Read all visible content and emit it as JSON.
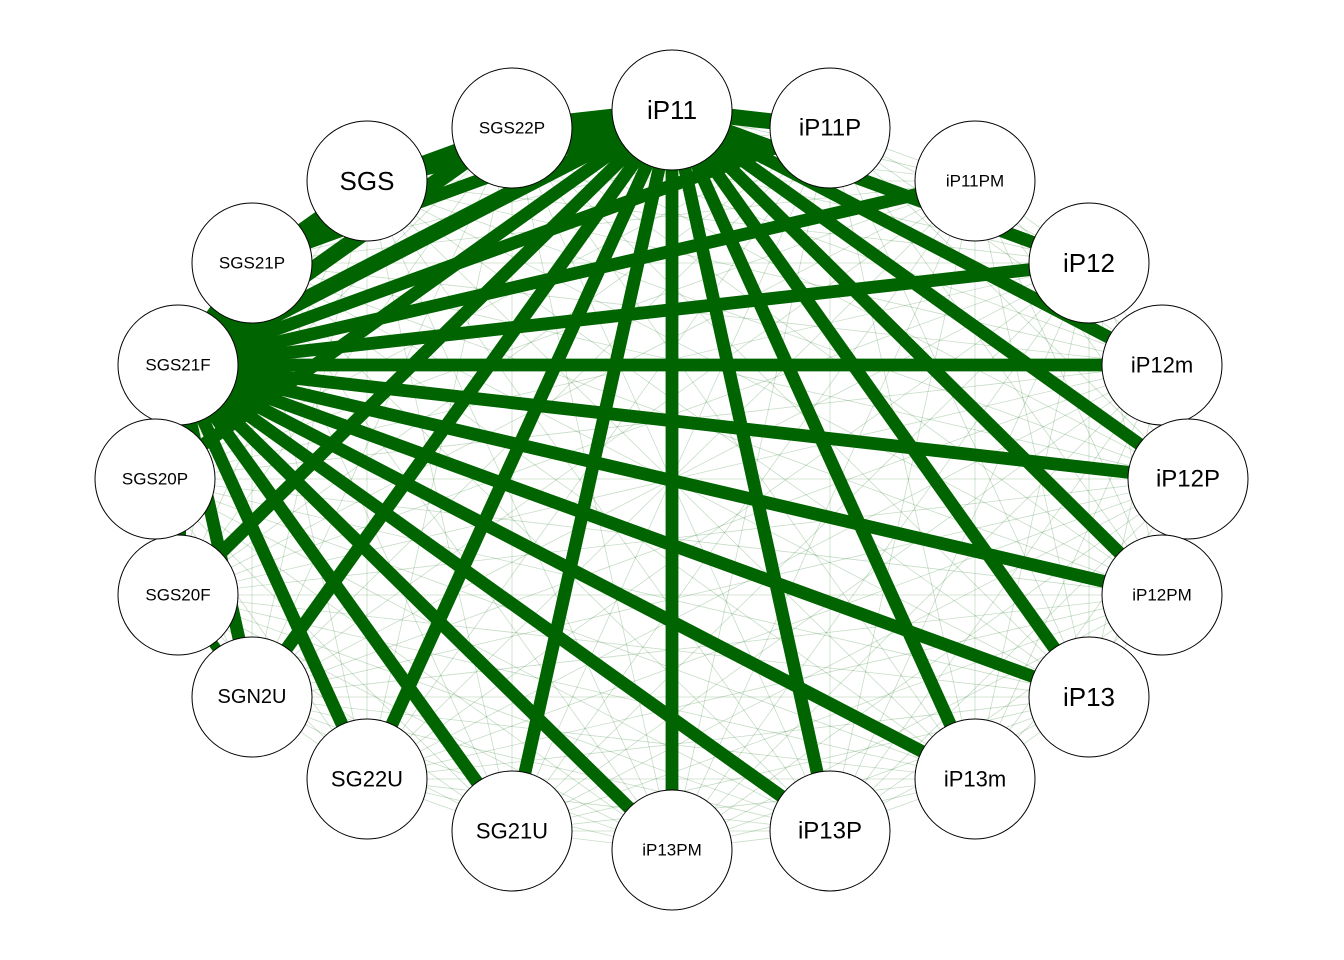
{
  "colors": {
    "edge": "#006400",
    "node_fill": "#ffffff",
    "node_stroke": "#000000",
    "label": "#000000"
  },
  "nodes": [
    {
      "id": "SGS21F",
      "label": "SGS21F"
    },
    {
      "id": "SGS21P",
      "label": "SGS21P"
    },
    {
      "id": "SGS",
      "label": "SGS"
    },
    {
      "id": "SGS22P",
      "label": "SGS22P"
    },
    {
      "id": "iP11",
      "label": "iP11"
    },
    {
      "id": "iP11P",
      "label": "iP11P"
    },
    {
      "id": "iP11PM",
      "label": "iP11PM"
    },
    {
      "id": "iP12",
      "label": "iP12"
    },
    {
      "id": "iP12m",
      "label": "iP12m"
    },
    {
      "id": "iP12P",
      "label": "iP12P"
    },
    {
      "id": "iP12PM",
      "label": "iP12PM"
    },
    {
      "id": "iP13",
      "label": "iP13"
    },
    {
      "id": "iP13m",
      "label": "iP13m"
    },
    {
      "id": "iP13P",
      "label": "iP13P"
    },
    {
      "id": "iP13PM",
      "label": "iP13PM"
    },
    {
      "id": "SG21U",
      "label": "SG21U"
    },
    {
      "id": "SG22U",
      "label": "SG22U"
    },
    {
      "id": "SGN2U",
      "label": "SGN2U"
    },
    {
      "id": "SGS20F",
      "label": "SGS20F"
    },
    {
      "id": "SGS20P",
      "label": "SGS20P"
    }
  ],
  "edges": [
    {
      "source": "SGS21F",
      "target": "iP11",
      "weight": 10
    },
    {
      "source": "SGS21F",
      "target": "iP11P",
      "weight": 8
    },
    {
      "source": "SGS21F",
      "target": "iP11PM",
      "weight": 8
    },
    {
      "source": "SGS21F",
      "target": "iP12",
      "weight": 8
    },
    {
      "source": "SGS21F",
      "target": "iP12m",
      "weight": 8
    },
    {
      "source": "SGS21F",
      "target": "iP12P",
      "weight": 8
    },
    {
      "source": "SGS21F",
      "target": "iP12PM",
      "weight": 8
    },
    {
      "source": "SGS21F",
      "target": "iP13",
      "weight": 8
    },
    {
      "source": "SGS21F",
      "target": "iP13m",
      "weight": 8
    },
    {
      "source": "SGS21F",
      "target": "iP13P",
      "weight": 8
    },
    {
      "source": "SGS21F",
      "target": "iP13PM",
      "weight": 8
    },
    {
      "source": "SGS21F",
      "target": "SG21U",
      "weight": 8
    },
    {
      "source": "SGS21F",
      "target": "SG22U",
      "weight": 8
    },
    {
      "source": "SGS21F",
      "target": "SGN2U",
      "weight": 8
    },
    {
      "source": "SGS21F",
      "target": "SGS",
      "weight": 10
    },
    {
      "source": "SGS21F",
      "target": "SGS22P",
      "weight": 10
    },
    {
      "source": "SGS21F",
      "target": "SGS21P",
      "weight": 10
    },
    {
      "source": "SGS21F",
      "target": "SGS20P",
      "weight": 10
    },
    {
      "source": "SGS21F",
      "target": "SGS20F",
      "weight": 10
    },
    {
      "source": "iP11",
      "target": "SGS",
      "weight": 10
    },
    {
      "source": "iP11",
      "target": "SGS22P",
      "weight": 10
    },
    {
      "source": "iP11",
      "target": "SGS21P",
      "weight": 8
    },
    {
      "source": "iP11",
      "target": "SGS20P",
      "weight": 8
    },
    {
      "source": "iP11",
      "target": "SGS20F",
      "weight": 8
    },
    {
      "source": "iP11",
      "target": "SGN2U",
      "weight": 8
    },
    {
      "source": "iP11",
      "target": "SG22U",
      "weight": 8
    },
    {
      "source": "iP11",
      "target": "SG21U",
      "weight": 8
    },
    {
      "source": "iP11",
      "target": "iP13PM",
      "weight": 8
    },
    {
      "source": "iP11",
      "target": "iP13P",
      "weight": 8
    },
    {
      "source": "iP11",
      "target": "iP13m",
      "weight": 8
    },
    {
      "source": "iP11",
      "target": "iP13",
      "weight": 8
    },
    {
      "source": "iP11",
      "target": "iP12PM",
      "weight": 8
    },
    {
      "source": "iP11",
      "target": "iP12P",
      "weight": 8
    },
    {
      "source": "iP11",
      "target": "iP12m",
      "weight": 8
    },
    {
      "source": "iP11",
      "target": "iP12",
      "weight": 8
    },
    {
      "source": "iP11",
      "target": "iP11P",
      "weight": 10
    },
    {
      "source": "SGS",
      "target": "SGS22P",
      "weight": 6
    },
    {
      "source": "SGS",
      "target": "SGS21P",
      "weight": 6
    },
    {
      "source": "SGS20P",
      "target": "SGS20F",
      "weight": 6
    },
    {
      "source": "SGS20F",
      "target": "SGN2U",
      "weight": 6
    }
  ]
}
